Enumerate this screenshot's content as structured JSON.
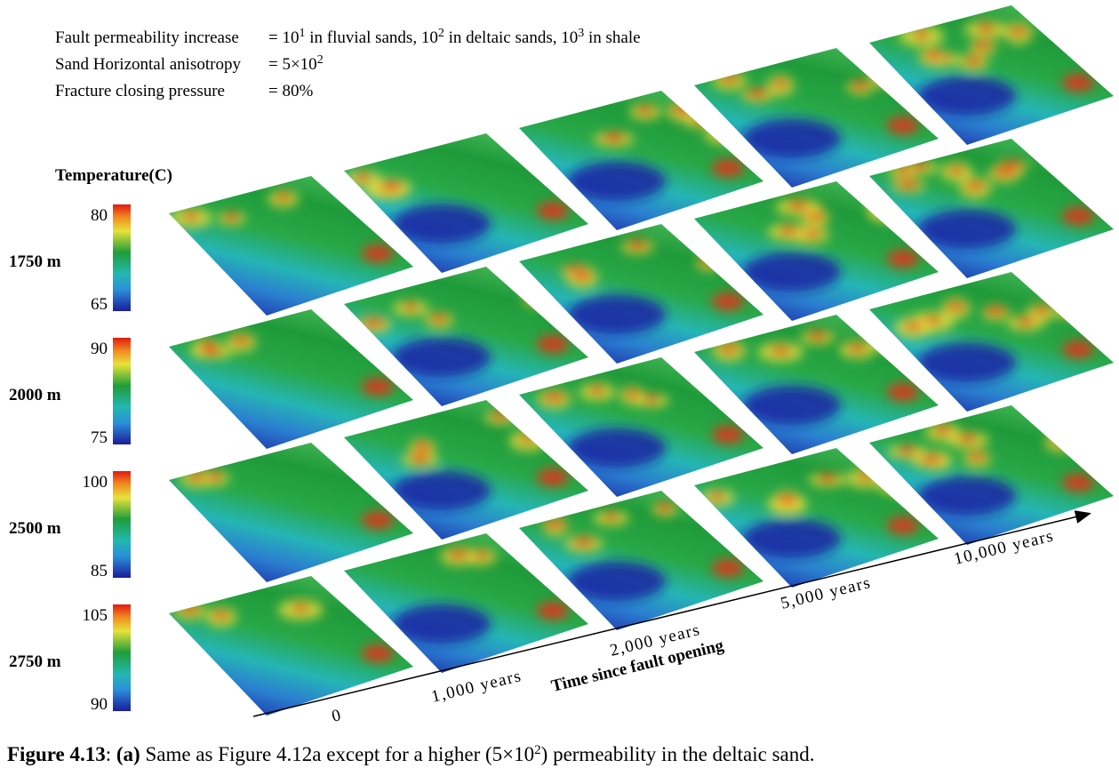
{
  "params": [
    {
      "label": "Fault permeability increase",
      "value": [
        "= 10",
        "1",
        " in fluvial sands, 10",
        "2",
        " in deltaic sands, 10",
        "3",
        " in shale"
      ]
    },
    {
      "label": "Sand Horizontal anisotropy",
      "value": [
        "= 5×10",
        "2"
      ]
    },
    {
      "label": "Fracture closing pressure",
      "value": [
        "= 80%"
      ]
    }
  ],
  "colorbar_title": "Temperature(C)",
  "depths": [
    {
      "label": "1750 m",
      "max": 80,
      "min": 65
    },
    {
      "label": "2000 m",
      "max": 90,
      "min": 75
    },
    {
      "label": "2500 m",
      "max": 100,
      "min": 85
    },
    {
      "label": "2750 m",
      "max": 105,
      "min": 90
    }
  ],
  "times": [
    "0",
    "1,000 years",
    "2,000 years",
    "5,000 years",
    "10,000 years"
  ],
  "time_axis_title": "Time since fault opening",
  "caption": {
    "figure": "Figure 4.13",
    "sep": ": ",
    "part": "(a)",
    "text": [
      " Same as Figure 4.12a except for a higher (5×10",
      "2",
      ") permeability in the deltaic sand."
    ]
  }
}
